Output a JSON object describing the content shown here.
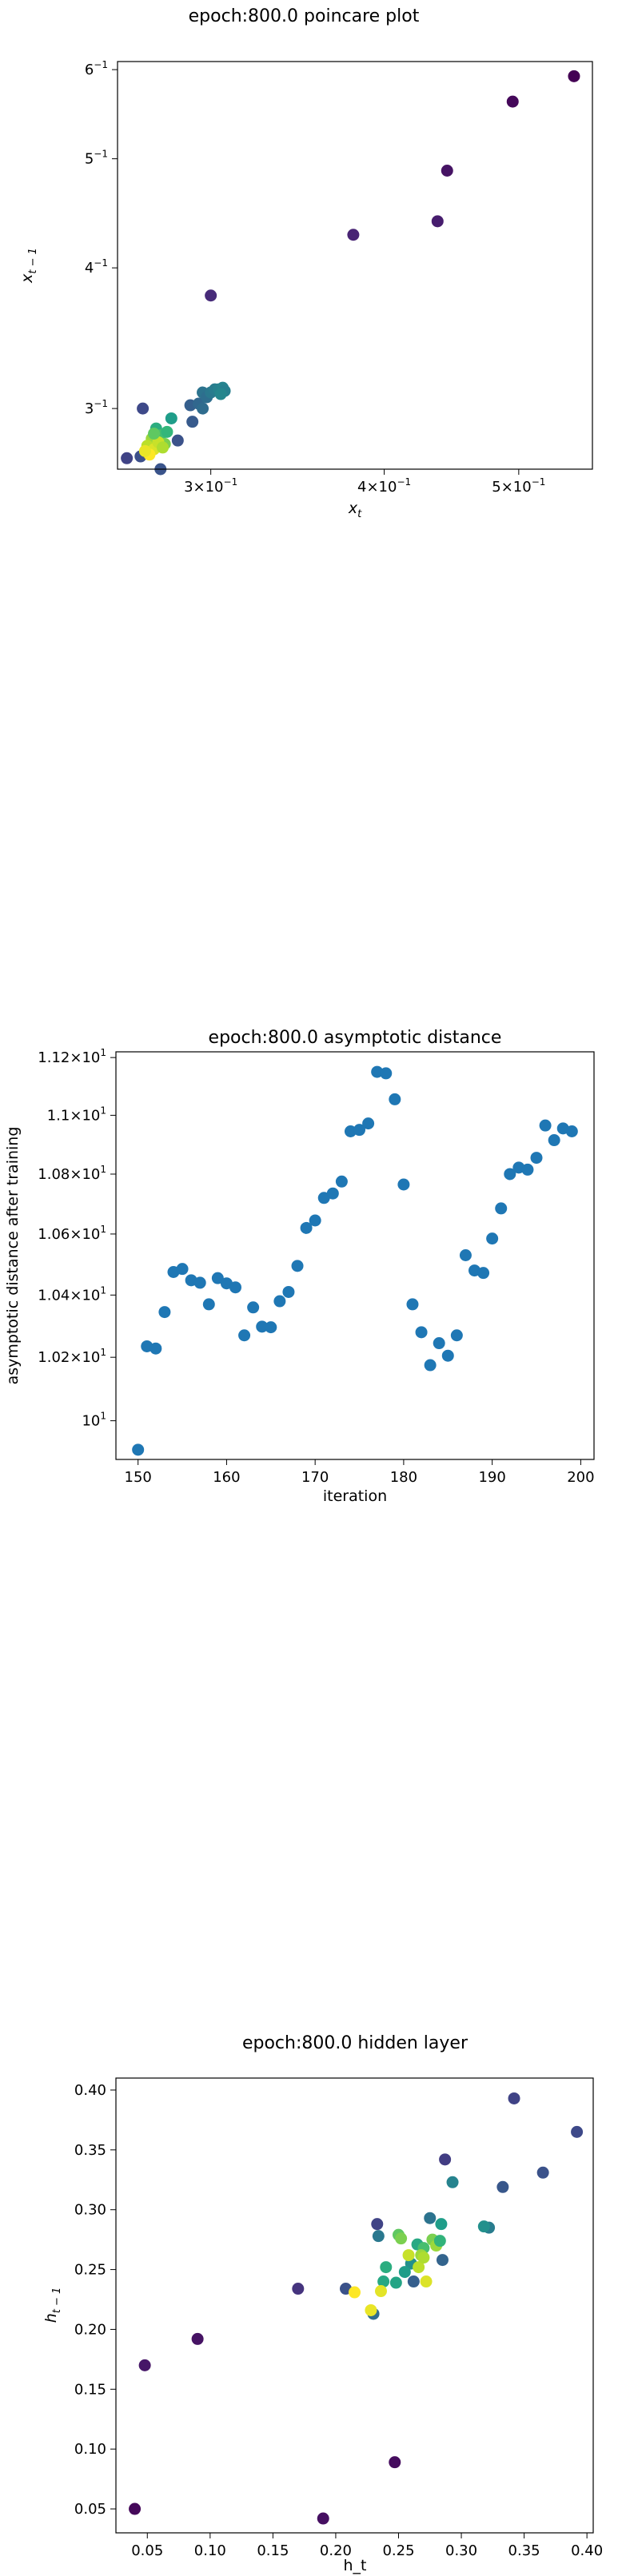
{
  "chart_data": [
    {
      "type": "scatter",
      "title": "epoch:800.0 poincare plot",
      "xlabel": "x_t",
      "ylabel": "x_{t-1}",
      "xscale": "log",
      "yscale": "log",
      "xlim": [
        0.257,
        0.565
      ],
      "ylim": [
        0.265,
        0.61
      ],
      "xticks": [
        {
          "value": 0.3,
          "base": "3",
          "exp": "−1"
        },
        {
          "value": 0.4,
          "base": "4",
          "exp": "−1"
        },
        {
          "value": 0.5,
          "base": "5",
          "exp": "−1"
        }
      ],
      "yticks": [
        {
          "value": 0.3,
          "base": "3",
          "exp": "−1"
        },
        {
          "value": 0.4,
          "base": "4",
          "exp": "−1"
        },
        {
          "value": 0.5,
          "base": "5",
          "exp": "−1"
        },
        {
          "value": 0.6,
          "base": "6",
          "exp": "−1"
        }
      ],
      "colormap": "viridis",
      "points": [
        {
          "x": 0.548,
          "y": 0.592,
          "c": 0.0
        },
        {
          "x": 0.495,
          "y": 0.562,
          "c": 0.02
        },
        {
          "x": 0.444,
          "y": 0.488,
          "c": 0.05
        },
        {
          "x": 0.437,
          "y": 0.44,
          "c": 0.08
        },
        {
          "x": 0.38,
          "y": 0.428,
          "c": 0.1
        },
        {
          "x": 0.3,
          "y": 0.378,
          "c": 0.12
        },
        {
          "x": 0.261,
          "y": 0.271,
          "c": 0.2
        },
        {
          "x": 0.268,
          "y": 0.3,
          "c": 0.22
        },
        {
          "x": 0.284,
          "y": 0.281,
          "c": 0.25
        },
        {
          "x": 0.29,
          "y": 0.302,
          "c": 0.3
        },
        {
          "x": 0.294,
          "y": 0.303,
          "c": 0.33
        },
        {
          "x": 0.296,
          "y": 0.31,
          "c": 0.38
        },
        {
          "x": 0.298,
          "y": 0.307,
          "c": 0.36
        },
        {
          "x": 0.3,
          "y": 0.31,
          "c": 0.4
        },
        {
          "x": 0.302,
          "y": 0.312,
          "c": 0.42
        },
        {
          "x": 0.304,
          "y": 0.312,
          "c": 0.44
        },
        {
          "x": 0.306,
          "y": 0.313,
          "c": 0.45
        },
        {
          "x": 0.307,
          "y": 0.311,
          "c": 0.43
        },
        {
          "x": 0.305,
          "y": 0.309,
          "c": 0.46
        },
        {
          "x": 0.296,
          "y": 0.3,
          "c": 0.35
        },
        {
          "x": 0.291,
          "y": 0.292,
          "c": 0.28
        },
        {
          "x": 0.276,
          "y": 0.265,
          "c": 0.26
        },
        {
          "x": 0.267,
          "y": 0.272,
          "c": 0.24
        },
        {
          "x": 0.281,
          "y": 0.294,
          "c": 0.55
        },
        {
          "x": 0.274,
          "y": 0.288,
          "c": 0.62
        },
        {
          "x": 0.276,
          "y": 0.284,
          "c": 0.7
        },
        {
          "x": 0.278,
          "y": 0.279,
          "c": 0.8
        },
        {
          "x": 0.272,
          "y": 0.282,
          "c": 0.85
        },
        {
          "x": 0.27,
          "y": 0.278,
          "c": 0.9
        },
        {
          "x": 0.273,
          "y": 0.276,
          "c": 0.95
        },
        {
          "x": 0.271,
          "y": 0.273,
          "c": 1.0
        },
        {
          "x": 0.275,
          "y": 0.28,
          "c": 0.92
        },
        {
          "x": 0.277,
          "y": 0.277,
          "c": 0.88
        },
        {
          "x": 0.269,
          "y": 0.275,
          "c": 0.97
        },
        {
          "x": 0.273,
          "y": 0.285,
          "c": 0.75
        },
        {
          "x": 0.279,
          "y": 0.286,
          "c": 0.66
        }
      ]
    },
    {
      "type": "scatter",
      "title": "epoch:800.0 asymptotic distance",
      "xlabel": "iteration",
      "ylabel": "asymptotic distance after training",
      "yscale": "log",
      "xlim": [
        147.5,
        201.5
      ],
      "ylim": [
        9.88,
        11.22
      ],
      "xticks": [
        150,
        160,
        170,
        180,
        190,
        200
      ],
      "yticks": [
        {
          "value": 10.0,
          "base": "10",
          "exp": "1"
        },
        {
          "value": 10.2,
          "base": "1.02×10",
          "exp": "1"
        },
        {
          "value": 10.4,
          "base": "1.04×10",
          "exp": "1"
        },
        {
          "value": 10.6,
          "base": "1.06×10",
          "exp": "1"
        },
        {
          "value": 10.8,
          "base": "1.08×10",
          "exp": "1"
        },
        {
          "value": 11.0,
          "base": "1.1×10",
          "exp": "1"
        },
        {
          "value": 11.2,
          "base": "1.12×10",
          "exp": "1"
        }
      ],
      "marker_color": "#1f77b4",
      "x": [
        150,
        151,
        152,
        153,
        154,
        155,
        156,
        157,
        158,
        159,
        160,
        161,
        162,
        163,
        164,
        165,
        166,
        167,
        168,
        169,
        170,
        171,
        172,
        173,
        174,
        175,
        176,
        177,
        178,
        179,
        180,
        181,
        182,
        183,
        184,
        185,
        186,
        187,
        188,
        189,
        190,
        191,
        192,
        193,
        194,
        195,
        196,
        197,
        198,
        199
      ],
      "y": [
        9.91,
        10.235,
        10.228,
        10.345,
        10.475,
        10.485,
        10.448,
        10.44,
        10.37,
        10.455,
        10.438,
        10.425,
        10.27,
        10.36,
        10.298,
        10.296,
        10.38,
        10.41,
        10.495,
        10.62,
        10.645,
        10.72,
        10.735,
        10.775,
        10.945,
        10.95,
        10.972,
        11.15,
        11.145,
        11.055,
        10.765,
        10.37,
        10.28,
        10.175,
        10.245,
        10.205,
        10.27,
        10.53,
        10.48,
        10.472,
        10.585,
        10.685,
        10.8,
        10.822,
        10.815,
        10.855,
        10.965,
        10.915,
        10.955,
        10.945
      ]
    },
    {
      "type": "scatter",
      "title": "epoch:800.0 hidden layer",
      "xlabel": "h_t",
      "ylabel": "h_{t-1}",
      "xlim": [
        0.025,
        0.405
      ],
      "ylim": [
        0.03,
        0.41
      ],
      "xticks": [
        0.05,
        0.1,
        0.15,
        0.2,
        0.25,
        0.3,
        0.35,
        0.4
      ],
      "yticks": [
        0.05,
        0.1,
        0.15,
        0.2,
        0.25,
        0.3,
        0.35,
        0.4
      ],
      "tick_format": 2,
      "colormap": "viridis",
      "points": [
        {
          "x": 0.04,
          "y": 0.05,
          "c": 0.02
        },
        {
          "x": 0.048,
          "y": 0.17,
          "c": 0.06
        },
        {
          "x": 0.09,
          "y": 0.192,
          "c": 0.05
        },
        {
          "x": 0.19,
          "y": 0.042,
          "c": 0.04
        },
        {
          "x": 0.247,
          "y": 0.089,
          "c": 0.03
        },
        {
          "x": 0.17,
          "y": 0.234,
          "c": 0.15
        },
        {
          "x": 0.208,
          "y": 0.234,
          "c": 0.25
        },
        {
          "x": 0.23,
          "y": 0.213,
          "c": 0.35
        },
        {
          "x": 0.233,
          "y": 0.288,
          "c": 0.2
        },
        {
          "x": 0.234,
          "y": 0.278,
          "c": 0.4
        },
        {
          "x": 0.287,
          "y": 0.342,
          "c": 0.18
        },
        {
          "x": 0.342,
          "y": 0.393,
          "c": 0.2
        },
        {
          "x": 0.392,
          "y": 0.365,
          "c": 0.22
        },
        {
          "x": 0.365,
          "y": 0.331,
          "c": 0.25
        },
        {
          "x": 0.333,
          "y": 0.319,
          "c": 0.27
        },
        {
          "x": 0.293,
          "y": 0.323,
          "c": 0.45
        },
        {
          "x": 0.322,
          "y": 0.285,
          "c": 0.42
        },
        {
          "x": 0.318,
          "y": 0.286,
          "c": 0.5
        },
        {
          "x": 0.285,
          "y": 0.258,
          "c": 0.32
        },
        {
          "x": 0.275,
          "y": 0.293,
          "c": 0.38
        },
        {
          "x": 0.284,
          "y": 0.288,
          "c": 0.55
        },
        {
          "x": 0.265,
          "y": 0.271,
          "c": 0.6
        },
        {
          "x": 0.27,
          "y": 0.268,
          "c": 0.7
        },
        {
          "x": 0.277,
          "y": 0.275,
          "c": 0.8
        },
        {
          "x": 0.268,
          "y": 0.262,
          "c": 0.85
        },
        {
          "x": 0.26,
          "y": 0.255,
          "c": 0.5
        },
        {
          "x": 0.255,
          "y": 0.248,
          "c": 0.55
        },
        {
          "x": 0.262,
          "y": 0.24,
          "c": 0.3
        },
        {
          "x": 0.248,
          "y": 0.239,
          "c": 0.58
        },
        {
          "x": 0.238,
          "y": 0.24,
          "c": 0.6
        },
        {
          "x": 0.24,
          "y": 0.252,
          "c": 0.62
        },
        {
          "x": 0.25,
          "y": 0.279,
          "c": 0.75
        },
        {
          "x": 0.252,
          "y": 0.276,
          "c": 0.8
        },
        {
          "x": 0.266,
          "y": 0.252,
          "c": 0.9
        },
        {
          "x": 0.27,
          "y": 0.26,
          "c": 0.88
        },
        {
          "x": 0.272,
          "y": 0.24,
          "c": 0.95
        },
        {
          "x": 0.258,
          "y": 0.262,
          "c": 0.92
        },
        {
          "x": 0.215,
          "y": 0.231,
          "c": 1.0
        },
        {
          "x": 0.228,
          "y": 0.216,
          "c": 0.97
        },
        {
          "x": 0.236,
          "y": 0.232,
          "c": 0.96
        },
        {
          "x": 0.28,
          "y": 0.27,
          "c": 0.85
        },
        {
          "x": 0.283,
          "y": 0.274,
          "c": 0.65
        }
      ]
    }
  ]
}
